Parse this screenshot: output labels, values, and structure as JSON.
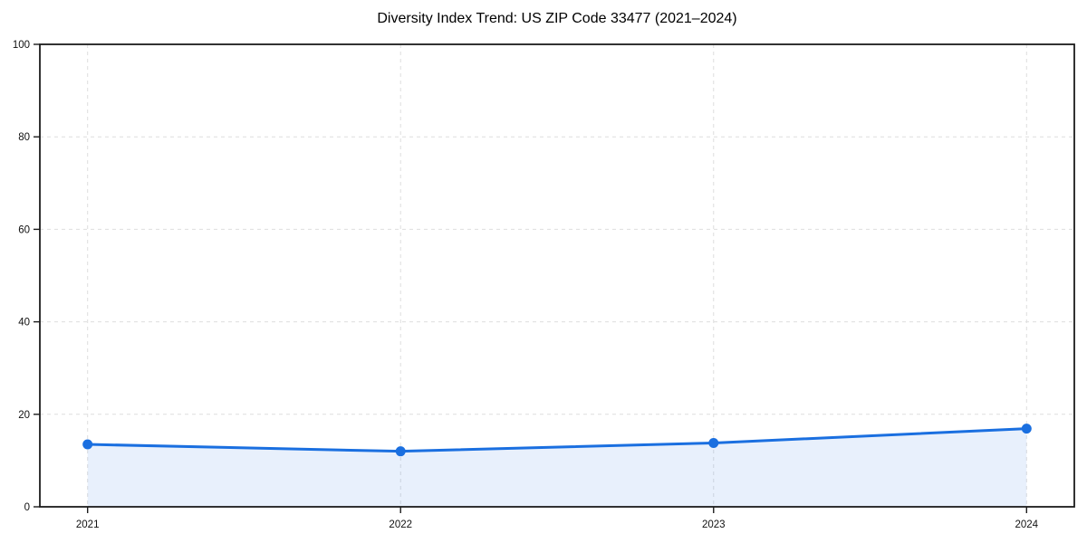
{
  "chart_data": {
    "type": "area",
    "title": "Diversity Index Trend: US ZIP Code 33477 (2021–2024)",
    "xlabel": "",
    "ylabel": "",
    "categories": [
      "2021",
      "2022",
      "2023",
      "2024"
    ],
    "series": [
      {
        "name": "Diversity Index",
        "values": [
          13.5,
          12.0,
          13.8,
          16.9
        ]
      }
    ],
    "ylim": [
      0,
      100
    ],
    "yticks": [
      0,
      20,
      40,
      60,
      80,
      100
    ],
    "grid": true,
    "grid_style": "dashed",
    "legend": "none",
    "marker": "filled-circle",
    "colors": {
      "line": "#1a6fe0",
      "marker": "#1a6fe0",
      "fill": "rgba(26,111,224,0.10)",
      "grid": "#dedede",
      "spine": "#1c1c1c",
      "tick_text": "#111111",
      "background": "#ffffff"
    }
  }
}
